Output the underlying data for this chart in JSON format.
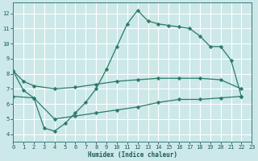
{
  "xlabel": "Humidex (Indice chaleur)",
  "bg_color": "#cce8e8",
  "grid_color": "#ffffff",
  "line_color": "#2a7a6a",
  "xlim": [
    0,
    23
  ],
  "ylim": [
    3.5,
    12.7
  ],
  "xticks": [
    0,
    1,
    2,
    3,
    4,
    5,
    6,
    7,
    8,
    9,
    10,
    11,
    12,
    13,
    14,
    15,
    16,
    17,
    18,
    19,
    20,
    21,
    22,
    23
  ],
  "yticks": [
    4,
    5,
    6,
    7,
    8,
    9,
    10,
    11,
    12
  ],
  "curve1_x": [
    0,
    1,
    2,
    3,
    4,
    5,
    6,
    7,
    8,
    9,
    10,
    11,
    12,
    13,
    14,
    15,
    16,
    17,
    18,
    19,
    20,
    21,
    22
  ],
  "curve1_y": [
    8.2,
    6.9,
    6.4,
    4.4,
    4.2,
    4.7,
    5.4,
    6.1,
    7.0,
    8.3,
    9.8,
    11.3,
    12.2,
    11.5,
    11.3,
    11.2,
    11.1,
    11.0,
    10.5,
    9.8,
    9.8,
    8.9,
    6.5
  ],
  "curve2_x": [
    0,
    1,
    2,
    4,
    6,
    8,
    10,
    12,
    14,
    16,
    18,
    20,
    22
  ],
  "curve2_y": [
    8.2,
    7.5,
    7.2,
    7.0,
    7.1,
    7.3,
    7.5,
    7.6,
    7.7,
    7.7,
    7.7,
    7.6,
    7.0
  ],
  "curve3_x": [
    0,
    2,
    4,
    6,
    8,
    10,
    12,
    14,
    16,
    18,
    20,
    22
  ],
  "curve3_y": [
    6.5,
    6.4,
    5.0,
    5.2,
    5.4,
    5.6,
    5.8,
    6.1,
    6.3,
    6.3,
    6.4,
    6.5
  ],
  "tick_color": "#1a5a5a",
  "xlabel_fontsize": 5.5,
  "tick_fontsize": 5.0,
  "lw": 0.9,
  "ms": 2.5
}
